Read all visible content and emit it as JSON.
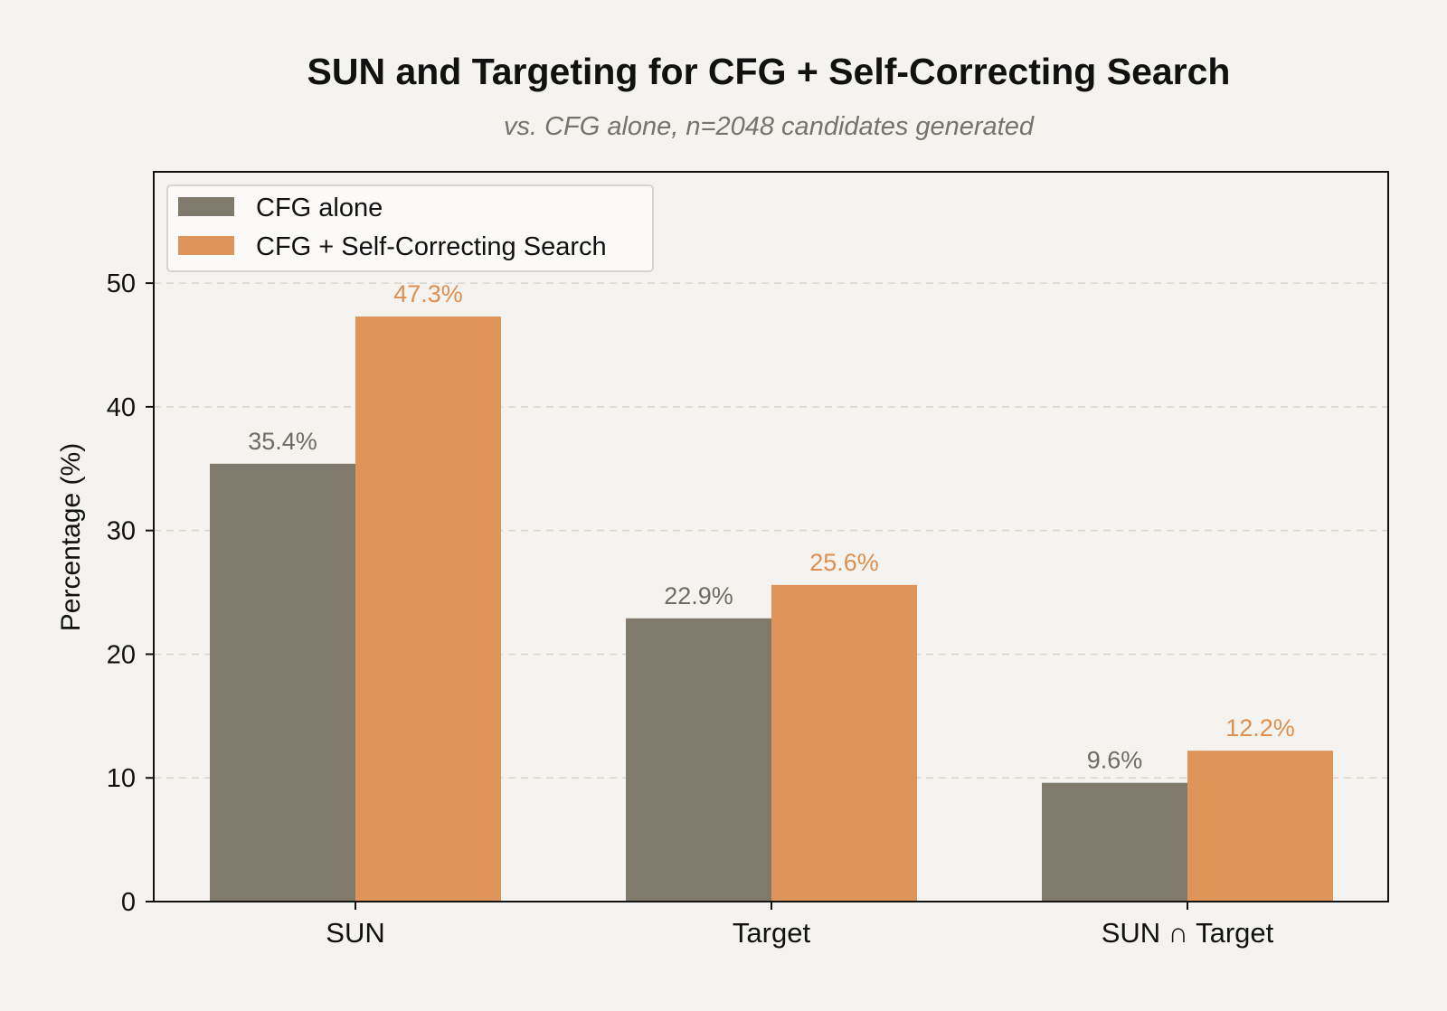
{
  "chart_data": {
    "type": "bar",
    "title": "SUN and Targeting for CFG + Self-Correcting Search",
    "subtitle": "vs. CFG alone, n=2048 candidates generated",
    "xlabel": "",
    "ylabel": "Percentage (%)",
    "categories": [
      "SUN",
      "Target",
      "SUN ∩ Target"
    ],
    "series": [
      {
        "name": "CFG alone",
        "values": [
          35.4,
          22.9,
          9.6
        ],
        "labels": [
          "35.4%",
          "22.9%",
          "9.6%"
        ],
        "color": "#7f7a6b",
        "label_color": "#6f6b62"
      },
      {
        "name": "CFG + Self-Correcting Search",
        "values": [
          47.3,
          25.6,
          12.2
        ],
        "labels": [
          "47.3%",
          "25.6%",
          "12.2%"
        ],
        "color": "#df955a",
        "label_color": "#df8f4f"
      }
    ],
    "ylim": [
      0,
      59
    ],
    "yticks": [
      0,
      10,
      20,
      30,
      40,
      50
    ],
    "ytick_labels": [
      "0",
      "10",
      "20",
      "30",
      "40",
      "50"
    ],
    "grid": "y dashed",
    "legend": "top-left"
  }
}
